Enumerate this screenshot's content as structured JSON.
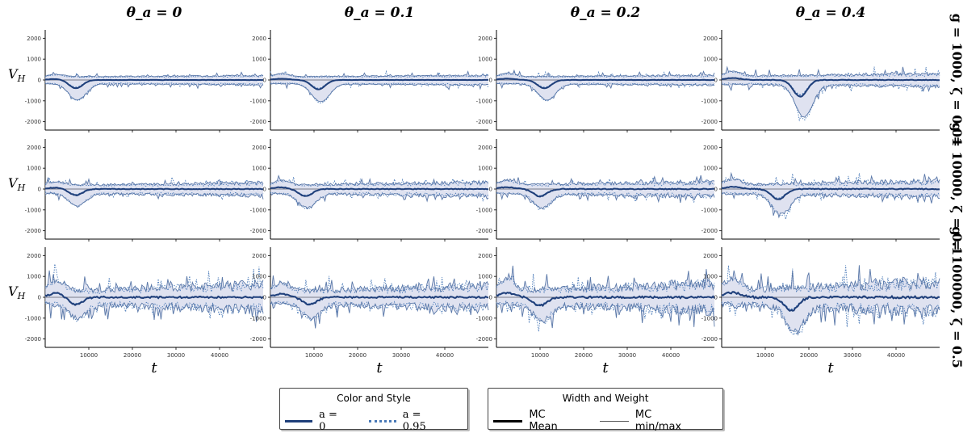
{
  "colors": {
    "dark": "#1f3f7a",
    "light": "#4a7ab8",
    "fill": "#c9cee6",
    "axis": "#000000"
  },
  "columns": [
    "θ_a = 0",
    "θ_a = 0.1",
    "θ_a = 0.2",
    "θ_a = 0.4"
  ],
  "rows": [
    "g = 1000, ζ = 0.01",
    "g = 10000, ζ = 0.1",
    "g = 100000, ζ = 0.5"
  ],
  "ylabel": "V_H",
  "xlabel": "t",
  "legend": {
    "color": {
      "title": "Color and Style",
      "a0": "a = 0",
      "a095": "a = 0.95"
    },
    "width": {
      "title": "Width and Weight",
      "mean": "MC Mean",
      "minmax": "MC min/max"
    }
  },
  "chart_data": {
    "type": "line",
    "layout": "4x3 grid of line plots",
    "xlim": [
      0,
      50000
    ],
    "ylim": [
      -2400,
      2400
    ],
    "xticks": [
      10000,
      20000,
      30000,
      40000
    ],
    "yticks": [
      -2000,
      -1000,
      0,
      1000,
      2000
    ],
    "series": [
      {
        "name": "a = 0",
        "style": "solid"
      },
      {
        "name": "a = 0.95",
        "style": "dotted"
      },
      {
        "name": "MC Mean",
        "weight": "thick"
      },
      {
        "name": "MC min/max",
        "weight": "thin"
      }
    ],
    "panels": [
      {
        "row": 0,
        "col": 0,
        "dip_t": 7000,
        "dip_v": -400,
        "amp": 200,
        "noise": 80
      },
      {
        "row": 0,
        "col": 1,
        "dip_t": 11000,
        "dip_v": -450,
        "amp": 250,
        "noise": 80
      },
      {
        "row": 0,
        "col": 2,
        "dip_t": 11000,
        "dip_v": -400,
        "amp": 260,
        "noise": 90
      },
      {
        "row": 0,
        "col": 3,
        "dip_t": 18000,
        "dip_v": -800,
        "amp": 400,
        "noise": 150
      },
      {
        "row": 1,
        "col": 0,
        "dip_t": 7000,
        "dip_v": -300,
        "amp": 300,
        "noise": 200
      },
      {
        "row": 1,
        "col": 1,
        "dip_t": 8000,
        "dip_v": -350,
        "amp": 350,
        "noise": 220
      },
      {
        "row": 1,
        "col": 2,
        "dip_t": 10000,
        "dip_v": -350,
        "amp": 380,
        "noise": 250
      },
      {
        "row": 1,
        "col": 3,
        "dip_t": 13000,
        "dip_v": -500,
        "amp": 450,
        "noise": 280
      },
      {
        "row": 2,
        "col": 0,
        "dip_t": 7000,
        "dip_v": -350,
        "amp": 800,
        "noise": 550
      },
      {
        "row": 2,
        "col": 1,
        "dip_t": 9000,
        "dip_v": -350,
        "amp": 700,
        "noise": 500
      },
      {
        "row": 2,
        "col": 2,
        "dip_t": 10000,
        "dip_v": -400,
        "amp": 900,
        "noise": 600
      },
      {
        "row": 2,
        "col": 3,
        "dip_t": 16000,
        "dip_v": -650,
        "amp": 1000,
        "noise": 700
      }
    ]
  }
}
